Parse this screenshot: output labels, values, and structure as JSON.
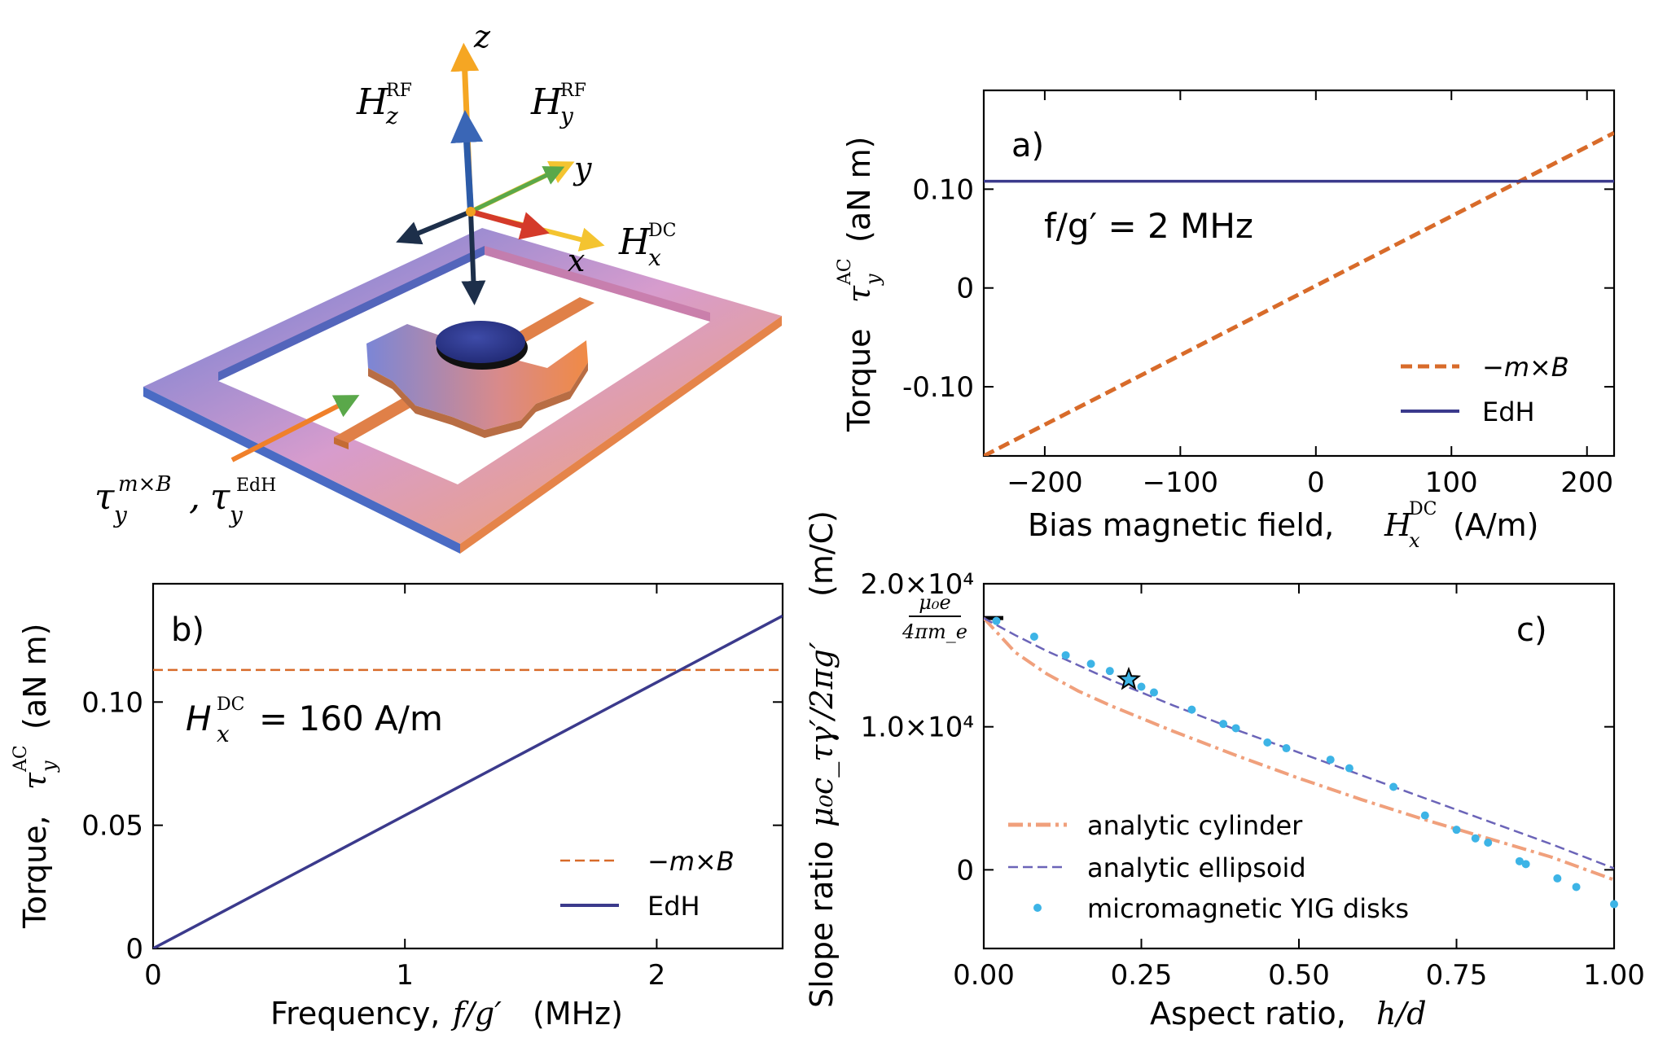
{
  "illustration": {
    "labels": {
      "z": "z",
      "y": "y",
      "x": "x",
      "h_z_rf": "H",
      "h_z_rf_sub": "z",
      "h_z_rf_sup": "RF",
      "h_y_rf": "H",
      "h_y_rf_sub": "y",
      "h_y_rf_sup": "RF",
      "h_x_dc": "H",
      "h_x_dc_sub": "x",
      "h_x_dc_sup": "DC",
      "tau_mxb": "τ",
      "tau_mxb_sub": "y",
      "tau_mxb_sup": "m×B",
      "tau_sep": ",",
      "tau_edh": "τ",
      "tau_edh_sub": "y",
      "tau_edh_sup": "EdH"
    }
  },
  "chart_data": [
    {
      "id": "a",
      "panel_label": "a)",
      "type": "line",
      "annotation": "f/g′ = 2 MHz",
      "xlabel": "Bias magnetic field, H_x^DC (A/m)",
      "xlabel_text": "Bias magnetic field,",
      "xlabel_var": "H",
      "xlabel_sub": "x",
      "xlabel_sup": "DC",
      "xlabel_unit": "(A/m)",
      "ylabel": "Torque τ_y^AC (aN m)",
      "ylabel_text": "Torque",
      "ylabel_var": "τ",
      "ylabel_sub": "y",
      "ylabel_sup": "AC",
      "ylabel_unit": "(aN m)",
      "xlim": [
        -245,
        220
      ],
      "ylim": [
        -0.17,
        0.2
      ],
      "xticks": [
        -200,
        -100,
        0,
        100,
        200
      ],
      "xtick_labels": [
        "−200",
        "−100",
        "0",
        "100",
        "200"
      ],
      "yticks": [
        -0.1,
        0,
        0.1
      ],
      "ytick_labels": [
        "-0.10",
        "0",
        "0.10"
      ],
      "legend": "bottom-right",
      "series": [
        {
          "name": "−m×B",
          "style": "dashed",
          "color": "#d86b2a",
          "x": [
            -245,
            220
          ],
          "y": [
            -0.17,
            0.157
          ]
        },
        {
          "name": "EdH",
          "style": "solid",
          "color": "#3b3a8c",
          "x": [
            -245,
            220
          ],
          "y": [
            0.108,
            0.108
          ]
        }
      ]
    },
    {
      "id": "b",
      "panel_label": "b)",
      "type": "line",
      "annotation_var": "H",
      "annotation_sub": "x",
      "annotation_sup": "DC",
      "annotation_text": " = 160 A/m",
      "xlabel": "Frequency, f/g′ (MHz)",
      "xlabel_text": "Frequency,",
      "xlabel_var": "f/g′",
      "xlabel_unit": "(MHz)",
      "ylabel": "Torque, τ_y^AC (aN m)",
      "ylabel_text": "Torque,",
      "ylabel_var": "τ",
      "ylabel_sub": "y",
      "ylabel_sup": "AC",
      "ylabel_unit": "(aN m)",
      "xlim": [
        0,
        2.5
      ],
      "ylim": [
        0,
        0.148
      ],
      "xticks": [
        0,
        1,
        2
      ],
      "xtick_labels": [
        "0",
        "1",
        "2"
      ],
      "yticks": [
        0,
        0.05,
        0.1
      ],
      "ytick_labels": [
        "0",
        "0.05",
        "0.10"
      ],
      "legend": "bottom-right",
      "series": [
        {
          "name": "−m×B",
          "style": "dashed",
          "color": "#d86b2a",
          "x": [
            0,
            2.5
          ],
          "y": [
            0.113,
            0.113
          ]
        },
        {
          "name": "EdH",
          "style": "solid",
          "color": "#3b3a8c",
          "x": [
            0,
            2.5
          ],
          "y": [
            0,
            0.135
          ]
        }
      ]
    },
    {
      "id": "c",
      "panel_label": "c)",
      "type": "line",
      "xlabel": "Aspect ratio, h/d",
      "xlabel_text": "Aspect ratio,",
      "xlabel_var": "h/d",
      "ylabel": "Slope ratio μ0 cτ γ′/2πg′ (m/C)",
      "ylabel_text": "Slope ratio",
      "ylabel_var": "μ₀c_τγ′/2πg′",
      "ylabel_unit": "(m/C)",
      "xlim": [
        0,
        1
      ],
      "ylim": [
        -5500,
        20000
      ],
      "xticks": [
        0,
        0.25,
        0.5,
        0.75,
        1.0
      ],
      "xtick_labels": [
        "0.00",
        "0.25",
        "0.50",
        "0.75",
        "1.00"
      ],
      "yticks": [
        0,
        10000,
        20000
      ],
      "ytick_labels": [
        "0",
        "1.0×10⁴",
        "2.0×10⁴"
      ],
      "ref_tick_value": 17600,
      "ref_tick_label_num": "μ₀e",
      "ref_tick_label_den": "4πm_e",
      "legend": "bottom-left",
      "series": [
        {
          "name": "analytic cylinder",
          "style": "dashdot",
          "color": "#f0a07c",
          "x": [
            0,
            0.05,
            0.1,
            0.15,
            0.2,
            0.3,
            0.4,
            0.5,
            0.6,
            0.7,
            0.8,
            0.9,
            1.0
          ],
          "y": [
            17600,
            15200,
            13700,
            12500,
            11500,
            9700,
            8000,
            6400,
            4900,
            3500,
            2200,
            900,
            -700
          ]
        },
        {
          "name": "analytic ellipsoid",
          "style": "dashed",
          "color": "#6b64b8",
          "x": [
            0,
            0.05,
            0.1,
            0.15,
            0.2,
            0.25,
            0.3,
            0.4,
            0.5,
            0.6,
            0.7,
            0.8,
            0.9,
            1.0
          ],
          "y": [
            17600,
            16400,
            15300,
            14300,
            13300,
            12400,
            11500,
            9800,
            8200,
            6600,
            5000,
            3400,
            1800,
            100
          ]
        },
        {
          "name": "micromagnetic YIG disks",
          "style": "markers",
          "color": "#3db4e6",
          "x": [
            0.02,
            0.08,
            0.13,
            0.17,
            0.2,
            0.23,
            0.25,
            0.27,
            0.33,
            0.38,
            0.4,
            0.45,
            0.48,
            0.55,
            0.58,
            0.65,
            0.7,
            0.75,
            0.78,
            0.8,
            0.85,
            0.86,
            0.91,
            0.94,
            1.0
          ],
          "y": [
            17400,
            16300,
            15000,
            14400,
            13900,
            13400,
            12800,
            12400,
            11200,
            10200,
            9900,
            8900,
            8500,
            7700,
            7100,
            5800,
            3800,
            2800,
            2200,
            1900,
            600,
            400,
            -600,
            -1200,
            -2400
          ]
        }
      ],
      "highlight": {
        "marker": "star",
        "x": 0.23,
        "y": 13300
      }
    }
  ]
}
